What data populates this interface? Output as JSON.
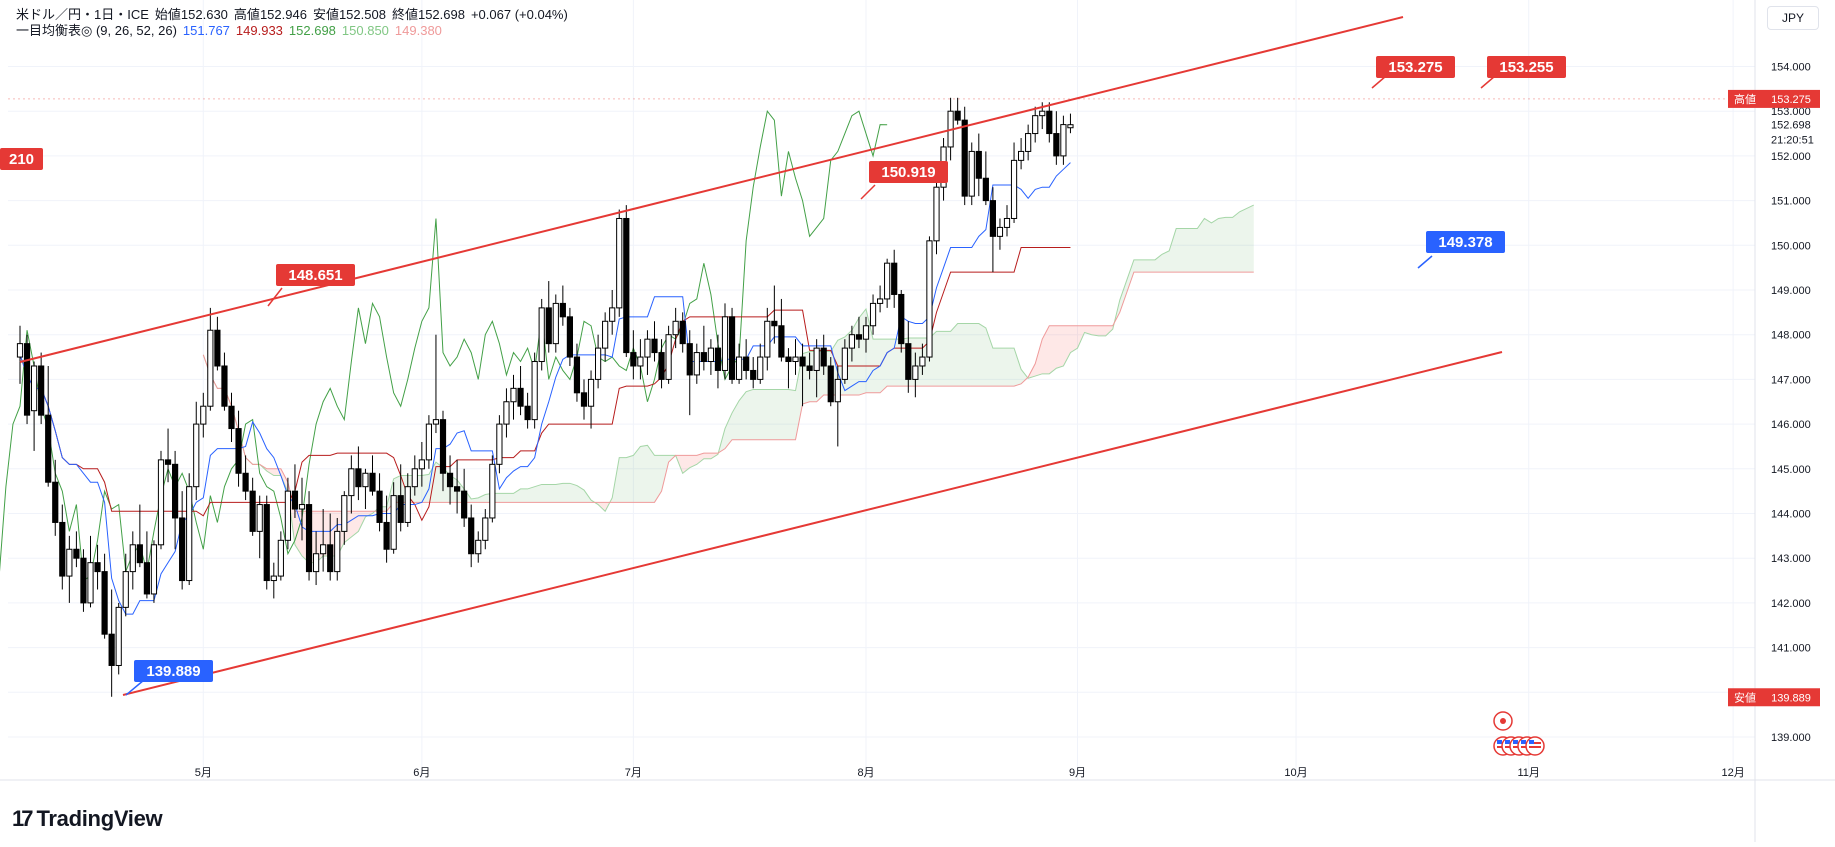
{
  "legend": {
    "title_line": "米ドル／円・1日・ICE",
    "ohlc": [
      {
        "label": "始値",
        "value": "152.630"
      },
      {
        "label": "高値",
        "value": "152.946"
      },
      {
        "label": "安値",
        "value": "152.508"
      },
      {
        "label": "終値",
        "value": "152.698"
      }
    ],
    "change": "+0.067 (+0.04%)",
    "indicator_name": "一目均衡表◎ (9, 26, 52, 26)",
    "indicator_values": [
      {
        "value": "151.767",
        "color": "#2962ff"
      },
      {
        "value": "149.933",
        "color": "#b71c1c"
      },
      {
        "value": "152.698",
        "color": "#43a047"
      },
      {
        "value": "150.850",
        "color": "#81c784"
      },
      {
        "value": "149.380",
        "color": "#ef9a9a"
      }
    ]
  },
  "currency": "JPY",
  "brand": "TradingView",
  "price_tags": {
    "high_label": "高値",
    "high_value": "153.275",
    "current": "152.698",
    "countdown": "21:20:51",
    "low_label": "安値",
    "low_value": "139.889"
  },
  "annotations": [
    {
      "text": "139.889",
      "kind": "low",
      "date_index": 16.5,
      "price": 139.889
    },
    {
      "text": "148.651",
      "kind": "high",
      "date_index": 38,
      "price": 148.651
    },
    {
      "text": "150.919",
      "kind": "high",
      "date_index": 122,
      "price": 150.919
    },
    {
      "text": "153.275",
      "kind": "high",
      "date_index": 195,
      "price": 153.275
    },
    {
      "text": "149.378",
      "kind": "low",
      "date_index": 205,
      "price": 149.378
    },
    {
      "text": "153.255",
      "kind": "high",
      "date_index": 212,
      "price": 153.255
    },
    {
      "text": "210",
      "kind": "high",
      "date_index": -5,
      "price": 151.9
    }
  ],
  "chart_data": {
    "type": "candlestick",
    "title": "米ドル／円・1日・ICE",
    "ylim": [
      138.3,
      155.0
    ],
    "y_ticks": [
      "139.000",
      "140.000",
      "141.000",
      "142.000",
      "143.000",
      "144.000",
      "145.000",
      "146.000",
      "147.000",
      "148.000",
      "149.000",
      "150.000",
      "151.000",
      "152.000",
      "153.000",
      "154.000"
    ],
    "x_ticks": [
      {
        "label": "5月",
        "date_index": 26
      },
      {
        "label": "6月",
        "date_index": 57
      },
      {
        "label": "7月",
        "date_index": 87
      },
      {
        "label": "8月",
        "date_index": 120
      },
      {
        "label": "9月",
        "date_index": 150
      },
      {
        "label": "10月",
        "date_index": 181
      },
      {
        "label": "11月",
        "date_index": 214
      },
      {
        "label": "12月",
        "date_index": 243
      }
    ],
    "grid": true,
    "series": [
      {
        "name": "USD/JPY daily candles",
        "ohlc": [
          [
            147.5,
            148.2,
            146.9,
            147.8
          ],
          [
            147.8,
            148.0,
            146.0,
            146.2
          ],
          [
            146.3,
            147.4,
            145.4,
            147.3
          ],
          [
            147.3,
            147.6,
            146.0,
            146.2
          ],
          [
            146.2,
            147.3,
            144.6,
            144.7
          ],
          [
            144.7,
            145.2,
            143.5,
            143.8
          ],
          [
            143.8,
            144.2,
            142.3,
            142.6
          ],
          [
            142.6,
            143.5,
            142.0,
            143.2
          ],
          [
            143.2,
            143.6,
            142.8,
            143.0
          ],
          [
            143.0,
            143.2,
            141.8,
            142.0
          ],
          [
            142.0,
            143.5,
            141.9,
            142.9
          ],
          [
            142.9,
            143.3,
            142.3,
            142.7
          ],
          [
            142.7,
            143.1,
            141.2,
            141.3
          ],
          [
            141.3,
            142.3,
            139.9,
            140.6
          ],
          [
            140.6,
            142.0,
            140.4,
            141.9
          ],
          [
            141.9,
            143.1,
            141.7,
            142.7
          ],
          [
            142.7,
            143.6,
            142.3,
            143.3
          ],
          [
            143.3,
            144.2,
            142.8,
            142.9
          ],
          [
            142.9,
            143.6,
            142.1,
            142.2
          ],
          [
            142.2,
            143.4,
            142.0,
            143.3
          ],
          [
            143.3,
            145.4,
            143.2,
            145.2
          ],
          [
            145.2,
            145.9,
            144.7,
            145.1
          ],
          [
            145.1,
            145.4,
            143.2,
            143.9
          ],
          [
            143.9,
            144.5,
            142.3,
            142.5
          ],
          [
            142.5,
            144.9,
            142.4,
            144.6
          ],
          [
            144.6,
            146.5,
            144.3,
            146.0
          ],
          [
            146.0,
            146.7,
            145.7,
            146.4
          ],
          [
            146.4,
            148.6,
            146.3,
            148.1
          ],
          [
            148.1,
            148.4,
            147.2,
            147.3
          ],
          [
            147.3,
            147.6,
            146.3,
            146.4
          ],
          [
            146.4,
            146.7,
            145.6,
            145.9
          ],
          [
            145.9,
            146.3,
            144.6,
            144.9
          ],
          [
            144.9,
            145.3,
            144.3,
            144.5
          ],
          [
            144.5,
            144.8,
            143.5,
            143.6
          ],
          [
            143.6,
            144.4,
            143.0,
            144.2
          ],
          [
            144.2,
            144.4,
            142.3,
            142.5
          ],
          [
            142.5,
            142.9,
            142.1,
            142.6
          ],
          [
            142.6,
            143.6,
            142.5,
            143.4
          ],
          [
            143.4,
            144.8,
            143.2,
            144.5
          ],
          [
            144.5,
            145.1,
            143.9,
            144.1
          ],
          [
            144.1,
            144.8,
            143.4,
            144.2
          ],
          [
            144.2,
            144.5,
            142.5,
            142.7
          ],
          [
            142.7,
            143.6,
            142.4,
            143.1
          ],
          [
            143.1,
            144.1,
            142.7,
            143.3
          ],
          [
            143.3,
            144.0,
            142.5,
            142.7
          ],
          [
            142.7,
            143.9,
            142.5,
            143.6
          ],
          [
            143.6,
            144.5,
            143.3,
            144.4
          ],
          [
            144.4,
            145.3,
            144.0,
            145.0
          ],
          [
            145.0,
            145.5,
            144.3,
            144.6
          ],
          [
            144.6,
            145.0,
            144.1,
            144.9
          ],
          [
            144.9,
            145.3,
            144.4,
            144.5
          ],
          [
            144.5,
            144.9,
            143.6,
            143.8
          ],
          [
            143.8,
            144.4,
            142.9,
            143.2
          ],
          [
            143.2,
            144.7,
            143.1,
            144.4
          ],
          [
            144.4,
            145.1,
            143.6,
            143.8
          ],
          [
            143.8,
            144.9,
            143.7,
            144.6
          ],
          [
            144.6,
            145.3,
            144.4,
            145.0
          ],
          [
            145.0,
            145.6,
            144.6,
            145.2
          ],
          [
            145.2,
            146.2,
            145.0,
            146.0
          ],
          [
            146.0,
            148.0,
            145.8,
            146.1
          ],
          [
            146.1,
            146.3,
            144.5,
            144.9
          ],
          [
            144.9,
            145.3,
            144.2,
            144.6
          ],
          [
            144.6,
            145.2,
            144.0,
            144.5
          ],
          [
            144.5,
            145.0,
            143.7,
            143.9
          ],
          [
            143.9,
            144.2,
            142.8,
            143.1
          ],
          [
            143.1,
            143.6,
            142.9,
            143.4
          ],
          [
            143.4,
            144.1,
            143.2,
            143.9
          ],
          [
            143.9,
            145.3,
            143.8,
            145.1
          ],
          [
            145.1,
            146.2,
            144.9,
            146.0
          ],
          [
            146.0,
            146.8,
            145.7,
            146.5
          ],
          [
            146.5,
            147.1,
            146.1,
            146.8
          ],
          [
            146.8,
            147.3,
            146.2,
            146.4
          ],
          [
            146.4,
            146.7,
            145.9,
            146.1
          ],
          [
            146.1,
            147.6,
            145.9,
            147.4
          ],
          [
            147.4,
            148.8,
            147.2,
            148.6
          ],
          [
            148.6,
            149.2,
            147.6,
            147.8
          ],
          [
            147.8,
            148.9,
            147.6,
            148.7
          ],
          [
            148.7,
            149.1,
            148.2,
            148.4
          ],
          [
            148.4,
            148.6,
            147.3,
            147.5
          ],
          [
            147.5,
            147.8,
            146.5,
            146.7
          ],
          [
            146.7,
            147.0,
            146.1,
            146.4
          ],
          [
            146.4,
            147.2,
            145.9,
            147.0
          ],
          [
            147.0,
            148.0,
            146.8,
            147.7
          ],
          [
            147.7,
            148.5,
            147.4,
            148.3
          ],
          [
            148.3,
            149.0,
            148.0,
            148.6
          ],
          [
            148.6,
            150.8,
            148.4,
            150.6
          ],
          [
            150.6,
            150.9,
            147.5,
            147.6
          ],
          [
            147.6,
            148.1,
            147.0,
            147.3
          ],
          [
            147.3,
            147.9,
            147.0,
            147.5
          ],
          [
            147.5,
            148.1,
            147.1,
            147.9
          ],
          [
            147.9,
            148.3,
            147.4,
            147.6
          ],
          [
            147.6,
            147.9,
            146.8,
            147.0
          ],
          [
            147.0,
            148.2,
            146.9,
            148.0
          ],
          [
            148.0,
            148.6,
            147.7,
            148.3
          ],
          [
            148.3,
            148.5,
            147.6,
            147.8
          ],
          [
            147.8,
            148.1,
            146.2,
            147.1
          ],
          [
            147.1,
            147.8,
            146.9,
            147.6
          ],
          [
            147.6,
            148.2,
            147.2,
            147.4
          ],
          [
            147.4,
            147.9,
            147.1,
            147.7
          ],
          [
            147.7,
            148.0,
            146.8,
            147.2
          ],
          [
            147.2,
            148.7,
            147.0,
            148.4
          ],
          [
            148.4,
            148.6,
            146.9,
            147.0
          ],
          [
            147.0,
            147.8,
            146.9,
            147.5
          ],
          [
            147.5,
            147.9,
            147.0,
            147.2
          ],
          [
            147.2,
            147.5,
            146.8,
            147.0
          ],
          [
            147.0,
            147.8,
            146.9,
            147.5
          ],
          [
            147.5,
            148.6,
            147.2,
            148.3
          ],
          [
            148.3,
            149.1,
            147.8,
            148.2
          ],
          [
            148.2,
            148.8,
            147.4,
            147.5
          ],
          [
            147.5,
            147.7,
            146.8,
            147.4
          ],
          [
            147.4,
            147.9,
            147.1,
            147.5
          ],
          [
            147.5,
            147.8,
            146.4,
            147.3
          ],
          [
            147.3,
            147.6,
            147.0,
            147.2
          ],
          [
            147.2,
            147.9,
            146.6,
            147.7
          ],
          [
            147.7,
            148.0,
            147.1,
            147.3
          ],
          [
            147.3,
            147.5,
            146.4,
            146.5
          ],
          [
            146.5,
            147.3,
            145.5,
            147.0
          ],
          [
            147.0,
            147.9,
            146.9,
            147.7
          ],
          [
            147.7,
            148.2,
            147.4,
            148.0
          ],
          [
            148.0,
            148.4,
            147.7,
            147.9
          ],
          [
            147.9,
            148.4,
            147.6,
            148.2
          ],
          [
            148.2,
            148.9,
            148.0,
            148.7
          ],
          [
            148.7,
            149.1,
            148.5,
            148.8
          ],
          [
            148.8,
            149.7,
            148.6,
            149.6
          ],
          [
            149.6,
            149.9,
            148.6,
            148.9
          ],
          [
            148.9,
            149.0,
            147.6,
            147.8
          ],
          [
            147.8,
            148.3,
            146.7,
            147.0
          ],
          [
            147.0,
            147.6,
            146.6,
            147.3
          ],
          [
            147.3,
            147.8,
            147.1,
            147.5
          ],
          [
            147.5,
            150.2,
            147.4,
            150.1
          ],
          [
            150.1,
            151.5,
            149.8,
            151.3
          ],
          [
            151.3,
            152.4,
            151.0,
            152.2
          ],
          [
            152.2,
            153.3,
            151.9,
            153.0
          ],
          [
            153.0,
            153.3,
            152.7,
            152.8
          ],
          [
            152.8,
            153.1,
            150.9,
            151.1
          ],
          [
            151.1,
            152.3,
            150.9,
            152.1
          ],
          [
            152.1,
            152.5,
            151.1,
            151.5
          ],
          [
            151.5,
            152.1,
            150.9,
            151.0
          ],
          [
            151.0,
            151.3,
            149.4,
            150.2
          ],
          [
            150.2,
            150.6,
            149.9,
            150.4
          ],
          [
            150.4,
            150.9,
            150.2,
            150.6
          ],
          [
            150.6,
            152.3,
            150.5,
            151.9
          ],
          [
            151.9,
            152.4,
            151.7,
            152.1
          ],
          [
            152.1,
            152.7,
            151.9,
            152.5
          ],
          [
            152.5,
            153.1,
            152.3,
            152.9
          ],
          [
            152.9,
            153.2,
            152.6,
            153.0
          ],
          [
            153.0,
            153.2,
            152.3,
            152.5
          ],
          [
            152.5,
            153.0,
            151.8,
            152.0
          ],
          [
            152.0,
            152.9,
            151.8,
            152.7
          ],
          [
            152.63,
            152.946,
            152.508,
            152.698
          ]
        ]
      }
    ]
  }
}
